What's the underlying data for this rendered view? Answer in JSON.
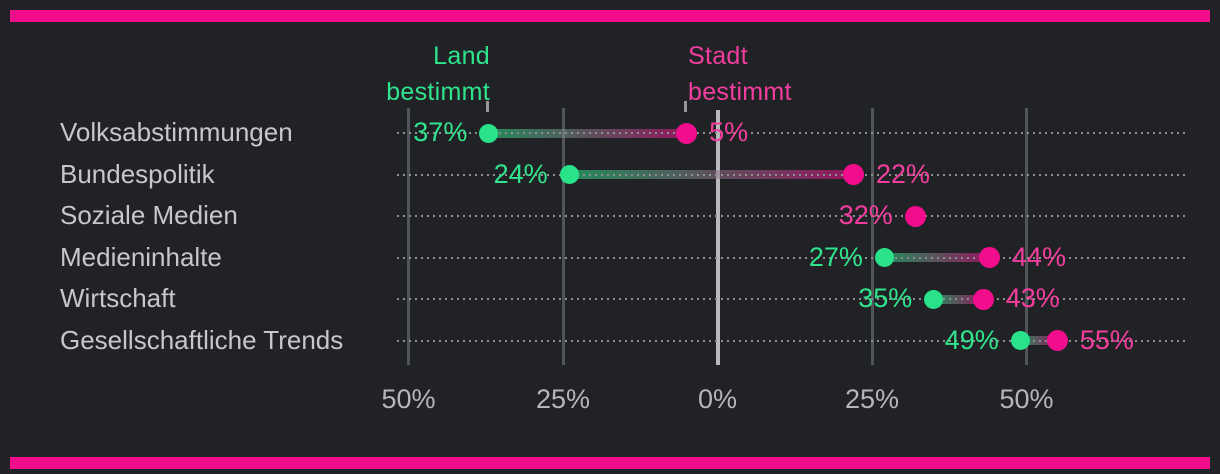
{
  "background": "#202226",
  "accent_bar_color": "#f20d8c",
  "legend": {
    "left": {
      "line1": "Land",
      "line2": "bestimmt",
      "color": "#2fe48c"
    },
    "right": {
      "line1": "Stadt",
      "line2": "bestimmt",
      "color": "#f43e9e"
    }
  },
  "colors": {
    "green_dot": "#29e289",
    "pink_dot": "#f20d8c",
    "green_text": "#2fe48c",
    "pink_text": "#f43e9e",
    "category_text": "#c7c7c9",
    "axis_text": "#b5b6b8",
    "gridline": "#515459",
    "zero_line": "#b7b9bb",
    "guide_dots": "#8d8f91"
  },
  "chart_data": {
    "type": "dumbbell",
    "orientation": "horizontal",
    "negative_side_label": "Land bestimmt",
    "positive_side_label": "Stadt bestimmt",
    "x_axis": {
      "min": -50,
      "max": 50,
      "ticks": [
        {
          "value": -50,
          "label": "50%"
        },
        {
          "value": -25,
          "label": "25%"
        },
        {
          "value": 0,
          "label": "0%"
        },
        {
          "value": 25,
          "label": "25%"
        },
        {
          "value": 50,
          "label": "50%"
        }
      ]
    },
    "series": [
      {
        "name": "Land bestimmt",
        "color": "#29e289"
      },
      {
        "name": "Stadt bestimmt",
        "color": "#f20d8c"
      }
    ],
    "rows": [
      {
        "category": "Volksabstimmungen",
        "green_value": -37,
        "green_label": "37%",
        "pink_value": -5,
        "pink_label": "5%"
      },
      {
        "category": "Bundespolitik",
        "green_value": -24,
        "green_label": "24%",
        "pink_value": 22,
        "pink_label": "22%"
      },
      {
        "category": "Soziale Medien",
        "green_value": null,
        "green_label": null,
        "pink_value": 32,
        "pink_label": "32%"
      },
      {
        "category": "Medieninhalte",
        "green_value": 27,
        "green_label": "27%",
        "pink_value": 44,
        "pink_label": "44%"
      },
      {
        "category": "Wirtschaft",
        "green_value": 35,
        "green_label": "35%",
        "pink_value": 43,
        "pink_label": "43%"
      },
      {
        "category": "Gesellschaftliche Trends",
        "green_value": 49,
        "green_label": "49%",
        "pink_value": 55,
        "pink_label": "55%"
      }
    ],
    "grid": true,
    "legend_position": "top"
  }
}
